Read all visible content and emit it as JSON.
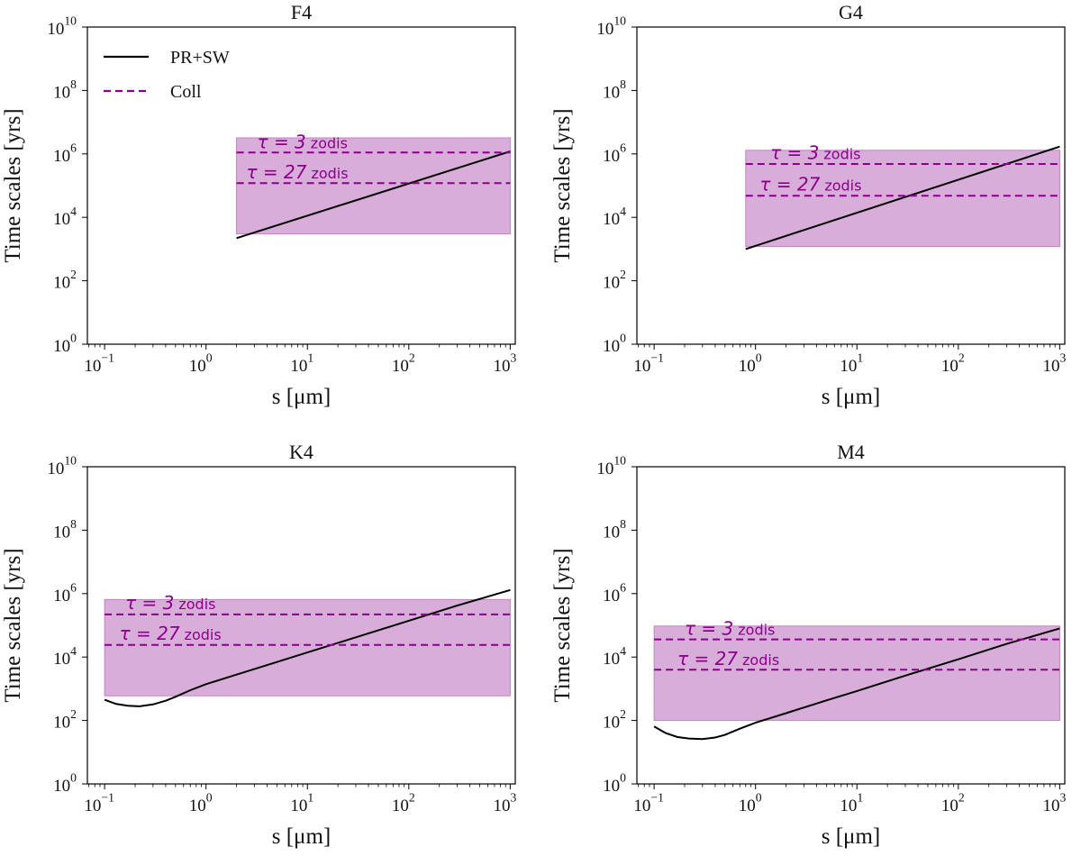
{
  "colors": {
    "prsw_line": "#000000",
    "coll_line": "#8b008b",
    "band_fill": "#c581c5",
    "annotation": "#8b008b"
  },
  "legend": {
    "items": [
      {
        "label": "PR+SW",
        "style": "solid",
        "color": "#000000"
      },
      {
        "label": "Coll",
        "style": "dashed",
        "color": "#8b008b"
      }
    ],
    "placement": "upper-left (first panel only)"
  },
  "chart_data": [
    {
      "type": "line",
      "title": "F4",
      "xlabel": "s [μm]",
      "ylabel": "Time scales [yrs]",
      "xscale": "log",
      "yscale": "log",
      "xlim": [
        0.1,
        1000
      ],
      "ylim": [
        1,
        10000000000.0
      ],
      "xticks": [
        0.1,
        1,
        10,
        100,
        1000
      ],
      "xtick_labels": [
        [
          "10",
          "−1"
        ],
        [
          "10",
          "0"
        ],
        [
          "10",
          "1"
        ],
        [
          "10",
          "2"
        ],
        [
          "10",
          "3"
        ]
      ],
      "yticks": [
        1,
        100,
        10000,
        1000000,
        100000000,
        10000000000
      ],
      "ytick_labels": [
        [
          "10",
          "0"
        ],
        [
          "10",
          "2"
        ],
        [
          "10",
          "4"
        ],
        [
          "10",
          "6"
        ],
        [
          "10",
          "8"
        ],
        [
          "10",
          "10"
        ]
      ],
      "show_legend": true,
      "series": [
        {
          "name": "PR+SW",
          "style": "solid",
          "x": [
            2,
            1000
          ],
          "y": [
            2200,
            1200000
          ]
        },
        {
          "name": "Coll",
          "style": "dashed",
          "x": [
            2,
            1000
          ],
          "y": [
            1100000,
            1100000
          ]
        },
        {
          "name": "Coll",
          "style": "dashed",
          "x": [
            2,
            1000
          ],
          "y": [
            120000,
            120000
          ]
        }
      ],
      "band": {
        "x": [
          2,
          1000
        ],
        "y": [
          3000,
          3200000
        ]
      },
      "annotations": [
        {
          "text": "τ = 3 zodis",
          "tau": "τ = 3",
          "unit": "zodis",
          "x": 3.2,
          "y": 1500000
        },
        {
          "text": "τ = 27 zodis",
          "tau": "τ = 27",
          "unit": "zodis",
          "x": 2.5,
          "y": 170000
        }
      ]
    },
    {
      "type": "line",
      "title": "G4",
      "xlabel": "s [μm]",
      "ylabel": "Time scales [yrs]",
      "xscale": "log",
      "yscale": "log",
      "xlim": [
        0.1,
        1000
      ],
      "ylim": [
        1,
        10000000000.0
      ],
      "xticks": [
        0.1,
        1,
        10,
        100,
        1000
      ],
      "xtick_labels": [
        [
          "10",
          "−1"
        ],
        [
          "10",
          "0"
        ],
        [
          "10",
          "1"
        ],
        [
          "10",
          "2"
        ],
        [
          "10",
          "3"
        ]
      ],
      "yticks": [
        1,
        100,
        10000,
        1000000,
        100000000,
        10000000000
      ],
      "ytick_labels": [
        [
          "10",
          "0"
        ],
        [
          "10",
          "2"
        ],
        [
          "10",
          "4"
        ],
        [
          "10",
          "6"
        ],
        [
          "10",
          "8"
        ],
        [
          "10",
          "10"
        ]
      ],
      "show_legend": false,
      "series": [
        {
          "name": "PR+SW",
          "style": "solid",
          "x": [
            0.8,
            1000
          ],
          "y": [
            1000,
            1700000
          ]
        },
        {
          "name": "Coll",
          "style": "dashed",
          "x": [
            0.8,
            1000
          ],
          "y": [
            480000,
            480000
          ]
        },
        {
          "name": "Coll",
          "style": "dashed",
          "x": [
            0.8,
            1000
          ],
          "y": [
            48000,
            48000
          ]
        }
      ],
      "band": {
        "x": [
          0.8,
          1000
        ],
        "y": [
          1200,
          1300000
        ]
      },
      "annotations": [
        {
          "text": "τ = 3 zodis",
          "tau": "τ = 3",
          "unit": "zodis",
          "x": 1.4,
          "y": 700000
        },
        {
          "text": "τ = 27 zodis",
          "tau": "τ = 27",
          "unit": "zodis",
          "x": 1.1,
          "y": 70000
        }
      ]
    },
    {
      "type": "line",
      "title": "K4",
      "xlabel": "s [μm]",
      "ylabel": "Time scales [yrs]",
      "xscale": "log",
      "yscale": "log",
      "xlim": [
        0.1,
        1000
      ],
      "ylim": [
        1,
        10000000000.0
      ],
      "xticks": [
        0.1,
        1,
        10,
        100,
        1000
      ],
      "xtick_labels": [
        [
          "10",
          "−1"
        ],
        [
          "10",
          "0"
        ],
        [
          "10",
          "1"
        ],
        [
          "10",
          "2"
        ],
        [
          "10",
          "3"
        ]
      ],
      "yticks": [
        1,
        100,
        10000,
        1000000,
        100000000,
        10000000000
      ],
      "ytick_labels": [
        [
          "10",
          "0"
        ],
        [
          "10",
          "2"
        ],
        [
          "10",
          "4"
        ],
        [
          "10",
          "6"
        ],
        [
          "10",
          "8"
        ],
        [
          "10",
          "10"
        ]
      ],
      "show_legend": false,
      "series": [
        {
          "name": "PR+SW",
          "style": "solid",
          "x": [
            0.1,
            0.13,
            0.17,
            0.22,
            0.3,
            0.4,
            0.5,
            0.7,
            1,
            2,
            5,
            10,
            30,
            100,
            300,
            1000
          ],
          "y": [
            450,
            330,
            290,
            280,
            320,
            420,
            560,
            900,
            1400,
            2800,
            7000,
            14000,
            42000,
            140000,
            420000,
            1300000
          ]
        },
        {
          "name": "Coll",
          "style": "dashed",
          "x": [
            0.1,
            1000
          ],
          "y": [
            220000,
            220000
          ]
        },
        {
          "name": "Coll",
          "style": "dashed",
          "x": [
            0.1,
            1000
          ],
          "y": [
            24000,
            24000
          ]
        }
      ],
      "band": {
        "x": [
          0.1,
          1000
        ],
        "y": [
          600,
          650000
        ]
      },
      "annotations": [
        {
          "text": "τ = 3 zodis",
          "tau": "τ = 3",
          "unit": "zodis",
          "x": 0.16,
          "y": 320000
        },
        {
          "text": "τ = 27 zodis",
          "tau": "τ = 27",
          "unit": "zodis",
          "x": 0.14,
          "y": 35000
        }
      ]
    },
    {
      "type": "line",
      "title": "M4",
      "xlabel": "s [μm]",
      "ylabel": "Time scales [yrs]",
      "xscale": "log",
      "yscale": "log",
      "xlim": [
        0.1,
        1000
      ],
      "ylim": [
        1,
        10000000000.0
      ],
      "xticks": [
        0.1,
        1,
        10,
        100,
        1000
      ],
      "xtick_labels": [
        [
          "10",
          "−1"
        ],
        [
          "10",
          "0"
        ],
        [
          "10",
          "1"
        ],
        [
          "10",
          "2"
        ],
        [
          "10",
          "3"
        ]
      ],
      "yticks": [
        1,
        100,
        10000,
        1000000,
        100000000,
        10000000000
      ],
      "ytick_labels": [
        [
          "10",
          "0"
        ],
        [
          "10",
          "2"
        ],
        [
          "10",
          "4"
        ],
        [
          "10",
          "6"
        ],
        [
          "10",
          "8"
        ],
        [
          "10",
          "10"
        ]
      ],
      "show_legend": false,
      "series": [
        {
          "name": "PR+SW",
          "style": "solid",
          "x": [
            0.1,
            0.13,
            0.17,
            0.22,
            0.3,
            0.4,
            0.5,
            0.7,
            1,
            2,
            5,
            10,
            30,
            100,
            300,
            1000
          ],
          "y": [
            65,
            40,
            30,
            27,
            26,
            29,
            35,
            55,
            85,
            170,
            430,
            850,
            2600,
            8500,
            26000,
            80000
          ]
        },
        {
          "name": "Coll",
          "style": "dashed",
          "x": [
            0.1,
            1000
          ],
          "y": [
            36000,
            36000
          ]
        },
        {
          "name": "Coll",
          "style": "dashed",
          "x": [
            0.1,
            1000
          ],
          "y": [
            4000,
            4000
          ]
        }
      ],
      "band": {
        "x": [
          0.1,
          1000
        ],
        "y": [
          100,
          95000
        ]
      },
      "annotations": [
        {
          "text": "τ = 3 zodis",
          "tau": "τ = 3",
          "unit": "zodis",
          "x": 0.2,
          "y": 50000
        },
        {
          "text": "τ = 27 zodis",
          "tau": "τ = 27",
          "unit": "zodis",
          "x": 0.17,
          "y": 5600
        }
      ]
    }
  ]
}
